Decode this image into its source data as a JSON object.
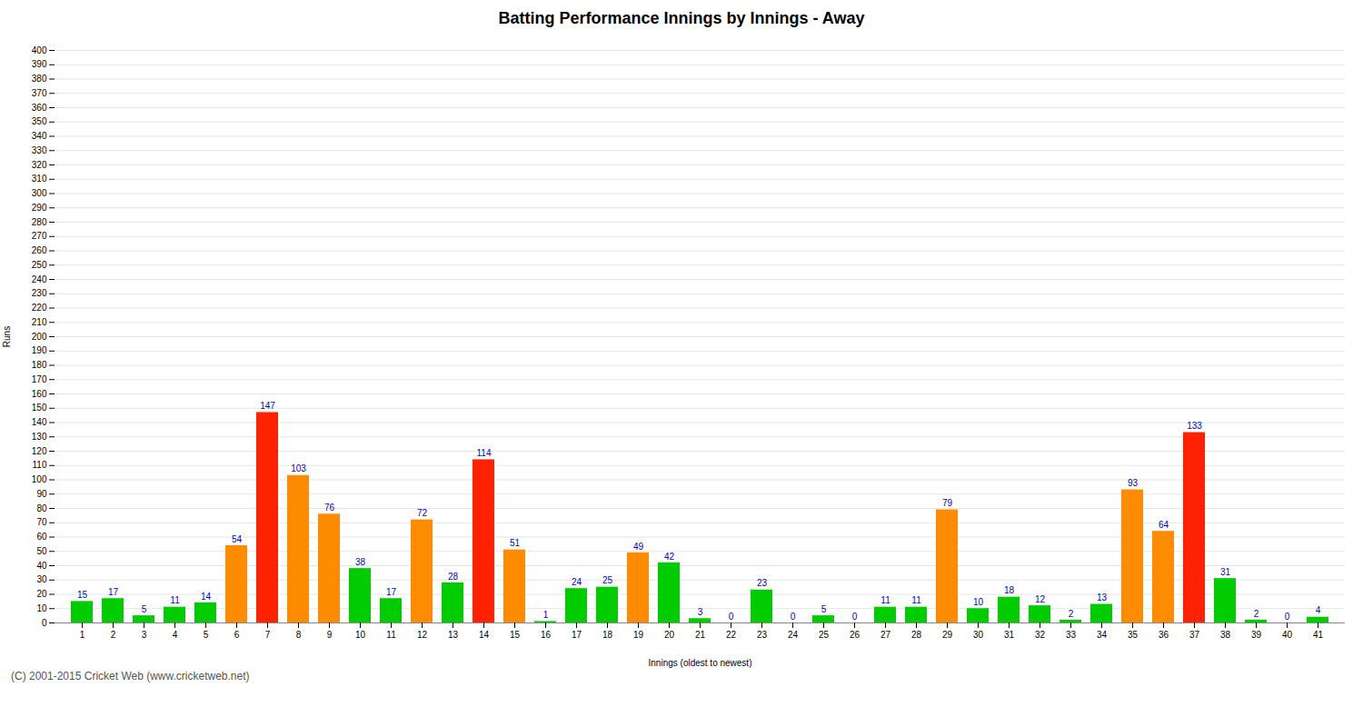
{
  "chart_data": {
    "type": "bar",
    "title": "Batting Performance Innings by Innings - Away",
    "xlabel": "Innings (oldest to newest)",
    "ylabel": "Runs",
    "caption": "(C) 2001-2015 Cricket Web (www.cricketweb.net)",
    "categories": [
      1,
      2,
      3,
      4,
      5,
      6,
      7,
      8,
      9,
      10,
      11,
      12,
      13,
      14,
      15,
      16,
      17,
      18,
      19,
      20,
      21,
      22,
      23,
      24,
      25,
      26,
      27,
      28,
      29,
      30,
      31,
      32,
      33,
      34,
      35,
      36,
      37,
      38,
      39,
      40,
      41
    ],
    "values": [
      15,
      17,
      5,
      11,
      14,
      54,
      147,
      103,
      76,
      38,
      17,
      72,
      28,
      114,
      51,
      1,
      24,
      25,
      49,
      42,
      3,
      0,
      23,
      0,
      5,
      0,
      11,
      11,
      79,
      10,
      18,
      12,
      2,
      13,
      93,
      64,
      133,
      31,
      2,
      0,
      4
    ],
    "colors": [
      "#00cc00",
      "#00cc00",
      "#00cc00",
      "#00cc00",
      "#00cc00",
      "#ff8c00",
      "#ff2200",
      "#ff8c00",
      "#ff8c00",
      "#00cc00",
      "#00cc00",
      "#ff8c00",
      "#00cc00",
      "#ff2200",
      "#ff8c00",
      "#00cc00",
      "#00cc00",
      "#00cc00",
      "#ff8c00",
      "#00cc00",
      "#00cc00",
      "#00cc00",
      "#00cc00",
      "#00cc00",
      "#00cc00",
      "#00cc00",
      "#00cc00",
      "#00cc00",
      "#ff8c00",
      "#00cc00",
      "#00cc00",
      "#00cc00",
      "#00cc00",
      "#00cc00",
      "#ff8c00",
      "#ff8c00",
      "#ff2200",
      "#00cc00",
      "#00cc00",
      "#00cc00",
      "#00cc00"
    ],
    "ylim": [
      0,
      400
    ],
    "yticks": [
      0,
      10,
      20,
      30,
      40,
      50,
      60,
      70,
      80,
      90,
      100,
      110,
      120,
      130,
      140,
      150,
      160,
      170,
      180,
      190,
      200,
      210,
      220,
      230,
      240,
      250,
      260,
      270,
      280,
      290,
      300,
      310,
      320,
      330,
      340,
      350,
      360,
      370,
      380,
      390,
      400
    ],
    "grid": true,
    "data_labels": true
  }
}
